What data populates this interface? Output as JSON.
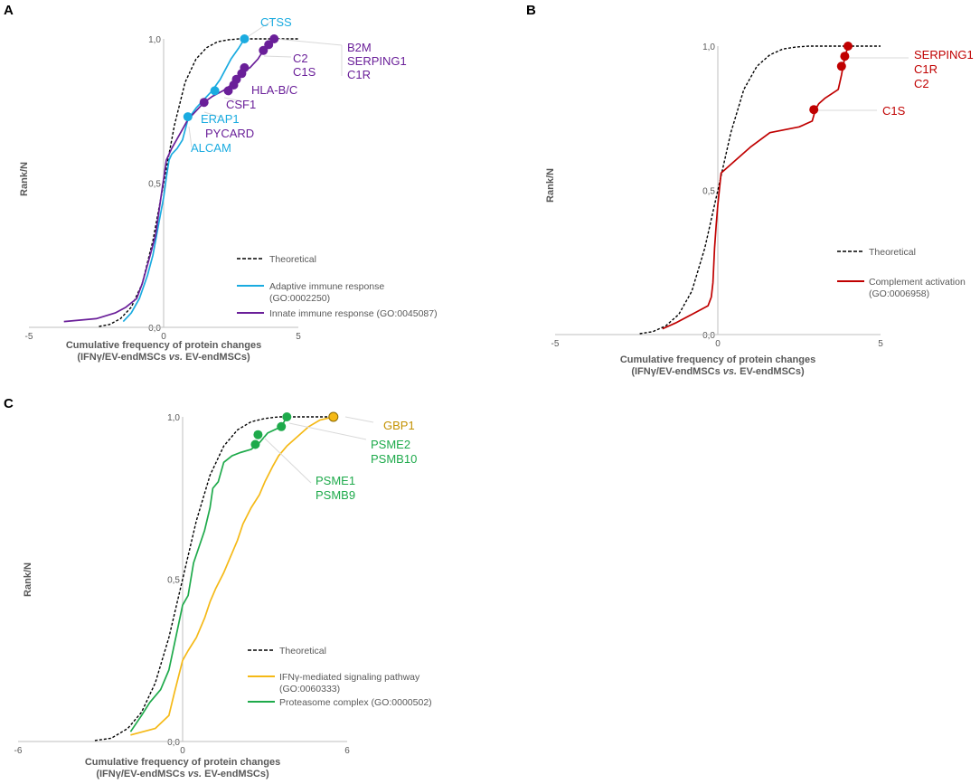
{
  "chart_data": [
    {
      "panel": "A",
      "type": "line",
      "xlabel_line1": "Cumulative frequency of protein changes",
      "xlabel_line2_parts": [
        "(IFNγ/EV-endMSCs ",
        "vs.",
        " EV-endMSCs)"
      ],
      "ylabel": "Rank/N",
      "xlim": [
        -5,
        5
      ],
      "ylim": [
        0,
        1
      ],
      "xticks": [
        "-5",
        "0",
        "5"
      ],
      "yticks": [
        "0,0",
        "0,5",
        "1,0"
      ],
      "legend": [
        {
          "label": "Theoretical",
          "color": "#000000",
          "dashed": true
        },
        {
          "label": "Adaptive immune response",
          "label2": "(GO:0002250)",
          "color": "#1AABE0"
        },
        {
          "label": "Innate immune response (GO:0045087)",
          "color": "#6A1F99"
        }
      ],
      "series": [
        {
          "name": "Theoretical",
          "color": "#000000",
          "dashed": true,
          "x": [
            -2.4,
            -2.0,
            -1.6,
            -1.2,
            -0.8,
            -0.4,
            0.0,
            0.4,
            0.8,
            1.2,
            1.6,
            2.0,
            2.4,
            2.8,
            3.2,
            3.6,
            4.0,
            4.5,
            5.0
          ],
          "y": [
            0.003,
            0.01,
            0.03,
            0.07,
            0.15,
            0.3,
            0.5,
            0.7,
            0.85,
            0.93,
            0.97,
            0.99,
            0.997,
            1.0,
            1.0,
            1.0,
            1.0,
            1.0,
            1.0
          ]
        },
        {
          "name": "Adaptive immune response (GO:0002250)",
          "color": "#1AABE0",
          "x": [
            -1.5,
            -1.2,
            -0.9,
            -0.6,
            -0.4,
            -0.2,
            0.0,
            0.1,
            0.2,
            0.3,
            0.5,
            0.7,
            0.9,
            1.2,
            1.5,
            1.8,
            2.1,
            2.5,
            2.8,
            3.0
          ],
          "y": [
            0.02,
            0.05,
            0.1,
            0.18,
            0.25,
            0.35,
            0.45,
            0.52,
            0.58,
            0.6,
            0.62,
            0.65,
            0.72,
            0.76,
            0.79,
            0.82,
            0.86,
            0.93,
            0.97,
            1.0
          ]
        },
        {
          "name": "Innate immune response (GO:0045087)",
          "color": "#6A1F99",
          "x": [
            -3.7,
            -2.5,
            -1.8,
            -1.4,
            -1.0,
            -0.8,
            -0.5,
            -0.3,
            -0.1,
            0.1,
            0.3,
            0.6,
            0.9,
            1.2,
            1.5,
            1.8,
            2.2,
            2.5,
            2.8,
            3.0,
            3.2,
            3.5,
            3.7,
            3.9,
            4.1
          ],
          "y": [
            0.02,
            0.03,
            0.05,
            0.07,
            0.1,
            0.15,
            0.25,
            0.32,
            0.45,
            0.58,
            0.62,
            0.67,
            0.72,
            0.75,
            0.78,
            0.8,
            0.82,
            0.84,
            0.86,
            0.89,
            0.9,
            0.93,
            0.96,
            0.98,
            1.0
          ]
        }
      ],
      "markers": [
        {
          "gene": "CTSS",
          "x": 3.0,
          "y": 1.0,
          "color": "#1AABE0"
        },
        {
          "gene": "ERAP1",
          "x": 1.9,
          "y": 0.82,
          "color": "#1AABE0"
        },
        {
          "gene": "ALCAM",
          "x": 0.9,
          "y": 0.73,
          "color": "#1AABE0"
        },
        {
          "gene": "B2M",
          "x": 4.1,
          "y": 1.0,
          "color": "#6A1F99"
        },
        {
          "gene": "",
          "x": 3.9,
          "y": 0.98,
          "color": "#6A1F99"
        },
        {
          "gene": "",
          "x": 3.7,
          "y": 0.96,
          "color": "#6A1F99"
        },
        {
          "gene": "",
          "x": 3.0,
          "y": 0.9,
          "color": "#6A1F99"
        },
        {
          "gene": "",
          "x": 2.9,
          "y": 0.88,
          "color": "#6A1F99"
        },
        {
          "gene": "",
          "x": 2.7,
          "y": 0.86,
          "color": "#6A1F99"
        },
        {
          "gene": "",
          "x": 2.6,
          "y": 0.84,
          "color": "#6A1F99"
        },
        {
          "gene": "CSF1",
          "x": 2.4,
          "y": 0.82,
          "color": "#6A1F99"
        },
        {
          "gene": "PYCARD",
          "x": 1.5,
          "y": 0.78,
          "color": "#6A1F99"
        }
      ],
      "annotations": [
        {
          "text": "CTSS",
          "color": "#1AABE0"
        },
        {
          "text": "B2M",
          "color": "#6A1F99"
        },
        {
          "text": "SERPING1",
          "color": "#6A1F99"
        },
        {
          "text": "C1R",
          "color": "#6A1F99"
        },
        {
          "text": "C2",
          "color": "#6A1F99"
        },
        {
          "text": "C1S",
          "color": "#6A1F99"
        },
        {
          "text": "HLA-B/C",
          "color": "#6A1F99"
        },
        {
          "text": "CSF1",
          "color": "#6A1F99"
        },
        {
          "text": "ERAP1",
          "color": "#1AABE0"
        },
        {
          "text": "PYCARD",
          "color": "#6A1F99"
        },
        {
          "text": "ALCAM",
          "color": "#1AABE0"
        }
      ]
    },
    {
      "panel": "B",
      "type": "line",
      "xlabel_line1": "Cumulative frequency of protein changes",
      "xlabel_line2_parts": [
        "(IFNγ/EV-endMSCs ",
        "vs.",
        " EV-endMSCs)"
      ],
      "ylabel": "Rank/N",
      "xlim": [
        -5,
        5
      ],
      "ylim": [
        0,
        1
      ],
      "xticks": [
        "-5",
        "0",
        "5"
      ],
      "yticks": [
        "0,0",
        "0,5",
        "1,0"
      ],
      "legend": [
        {
          "label": "Theoretical",
          "color": "#000000",
          "dashed": true
        },
        {
          "label": "Complement activation",
          "label2": "(GO:0006958)",
          "color": "#C00000"
        }
      ],
      "series": [
        {
          "name": "Theoretical",
          "color": "#000000",
          "dashed": true,
          "x": [
            -2.4,
            -2.0,
            -1.6,
            -1.2,
            -0.8,
            -0.4,
            0.0,
            0.4,
            0.8,
            1.2,
            1.6,
            2.0,
            2.4,
            2.8,
            3.2,
            3.6,
            4.0,
            4.5,
            5.0
          ],
          "y": [
            0.003,
            0.01,
            0.03,
            0.07,
            0.15,
            0.3,
            0.5,
            0.7,
            0.85,
            0.93,
            0.97,
            0.99,
            0.997,
            1.0,
            1.0,
            1.0,
            1.0,
            1.0,
            1.0
          ]
        },
        {
          "name": "Complement activation (GO:0006958)",
          "color": "#C00000",
          "x": [
            -1.7,
            -1.3,
            -0.8,
            -0.3,
            -0.2,
            -0.15,
            -0.1,
            -0.05,
            0.0,
            0.1,
            0.5,
            1.0,
            1.6,
            2.5,
            2.9,
            3.0,
            3.1,
            3.3,
            3.7,
            3.8,
            3.85,
            3.9,
            4.0
          ],
          "y": [
            0.02,
            0.04,
            0.07,
            0.1,
            0.13,
            0.18,
            0.3,
            0.38,
            0.45,
            0.56,
            0.6,
            0.65,
            0.7,
            0.72,
            0.74,
            0.78,
            0.8,
            0.82,
            0.85,
            0.9,
            0.93,
            0.96,
            1.0
          ]
        }
      ],
      "markers": [
        {
          "gene": "SERPING1",
          "x": 4.0,
          "y": 1.0,
          "color": "#C00000"
        },
        {
          "gene": "C1R",
          "x": 3.9,
          "y": 0.965,
          "color": "#C00000"
        },
        {
          "gene": "C2",
          "x": 3.8,
          "y": 0.93,
          "color": "#C00000"
        },
        {
          "gene": "C1S",
          "x": 2.95,
          "y": 0.78,
          "color": "#C00000"
        }
      ],
      "annotations": [
        {
          "text": "SERPING1",
          "color": "#C00000"
        },
        {
          "text": "C1R",
          "color": "#C00000"
        },
        {
          "text": "C2",
          "color": "#C00000"
        },
        {
          "text": "C1S",
          "color": "#C00000"
        }
      ]
    },
    {
      "panel": "C",
      "type": "line",
      "xlabel_line1": "Cumulative frequency of protein changes",
      "xlabel_line2_parts": [
        "(IFNγ/EV-endMSCs ",
        "vs.",
        " EV-endMSCs)"
      ],
      "ylabel": "Rank/N",
      "xlim": [
        -6,
        6
      ],
      "ylim": [
        0,
        1
      ],
      "xticks": [
        "-6",
        "0",
        "6"
      ],
      "yticks": [
        "0,0",
        "0,5",
        "1,0"
      ],
      "legend": [
        {
          "label": "Theoretical",
          "color": "#000000",
          "dashed": true
        },
        {
          "label": "IFNγ-mediated signaling pathway",
          "label2": "(GO:0060333)",
          "color": "#F5B916"
        },
        {
          "label": "Proteasome complex (GO:0000502)",
          "color": "#1EAA4B"
        }
      ],
      "series": [
        {
          "name": "Theoretical",
          "color": "#000000",
          "dashed": true,
          "x": [
            -3.2,
            -2.6,
            -2.0,
            -1.5,
            -1.0,
            -0.5,
            0.0,
            0.5,
            1.0,
            1.5,
            2.0,
            2.5,
            3.0,
            3.5,
            4.0,
            5.0,
            5.5
          ],
          "y": [
            0.003,
            0.01,
            0.04,
            0.09,
            0.18,
            0.32,
            0.5,
            0.68,
            0.82,
            0.91,
            0.96,
            0.985,
            0.995,
            1.0,
            1.0,
            1.0,
            1.0
          ]
        },
        {
          "name": "IFNγ-mediated signaling pathway (GO:0060333)",
          "color": "#F5B916",
          "x": [
            -1.9,
            -1.0,
            -0.5,
            -0.3,
            0.0,
            0.2,
            0.5,
            0.8,
            1.0,
            1.2,
            1.5,
            1.8,
            2.0,
            2.2,
            2.5,
            2.8,
            3.0,
            3.3,
            3.5,
            3.8,
            4.2,
            4.6,
            5.0,
            5.5
          ],
          "y": [
            0.02,
            0.04,
            0.08,
            0.15,
            0.25,
            0.28,
            0.32,
            0.38,
            0.43,
            0.47,
            0.52,
            0.58,
            0.62,
            0.67,
            0.72,
            0.76,
            0.8,
            0.85,
            0.88,
            0.91,
            0.94,
            0.97,
            0.99,
            1.0
          ]
        },
        {
          "name": "Proteasome complex (GO:0000502)",
          "color": "#1EAA4B",
          "x": [
            -1.9,
            -1.5,
            -1.2,
            -0.8,
            -0.5,
            -0.3,
            0.0,
            0.2,
            0.4,
            0.6,
            0.8,
            1.0,
            1.1,
            1.3,
            1.5,
            1.8,
            2.1,
            2.5,
            2.8,
            3.1,
            3.6,
            3.8
          ],
          "y": [
            0.03,
            0.08,
            0.12,
            0.16,
            0.22,
            0.3,
            0.42,
            0.45,
            0.55,
            0.6,
            0.65,
            0.72,
            0.78,
            0.8,
            0.86,
            0.88,
            0.89,
            0.9,
            0.92,
            0.95,
            0.97,
            1.0
          ]
        }
      ],
      "markers": [
        {
          "gene": "GBP1",
          "x": 5.5,
          "y": 1.0,
          "color": "#F5B916"
        },
        {
          "gene": "PSME2",
          "x": 3.8,
          "y": 1.0,
          "color": "#1EAA4B"
        },
        {
          "gene": "PSMB10",
          "x": 3.6,
          "y": 0.97,
          "color": "#1EAA4B"
        },
        {
          "gene": "PSME1",
          "x": 2.75,
          "y": 0.945,
          "color": "#1EAA4B"
        },
        {
          "gene": "PSMB9",
          "x": 2.65,
          "y": 0.915,
          "color": "#1EAA4B"
        }
      ],
      "annotations": [
        {
          "text": "GBP1",
          "color": "#C39100"
        },
        {
          "text": "PSME2",
          "color": "#1EAA4B"
        },
        {
          "text": "PSMB10",
          "color": "#1EAA4B"
        },
        {
          "text": "PSME1",
          "color": "#1EAA4B"
        },
        {
          "text": "PSMB9",
          "color": "#1EAA4B"
        }
      ]
    }
  ]
}
